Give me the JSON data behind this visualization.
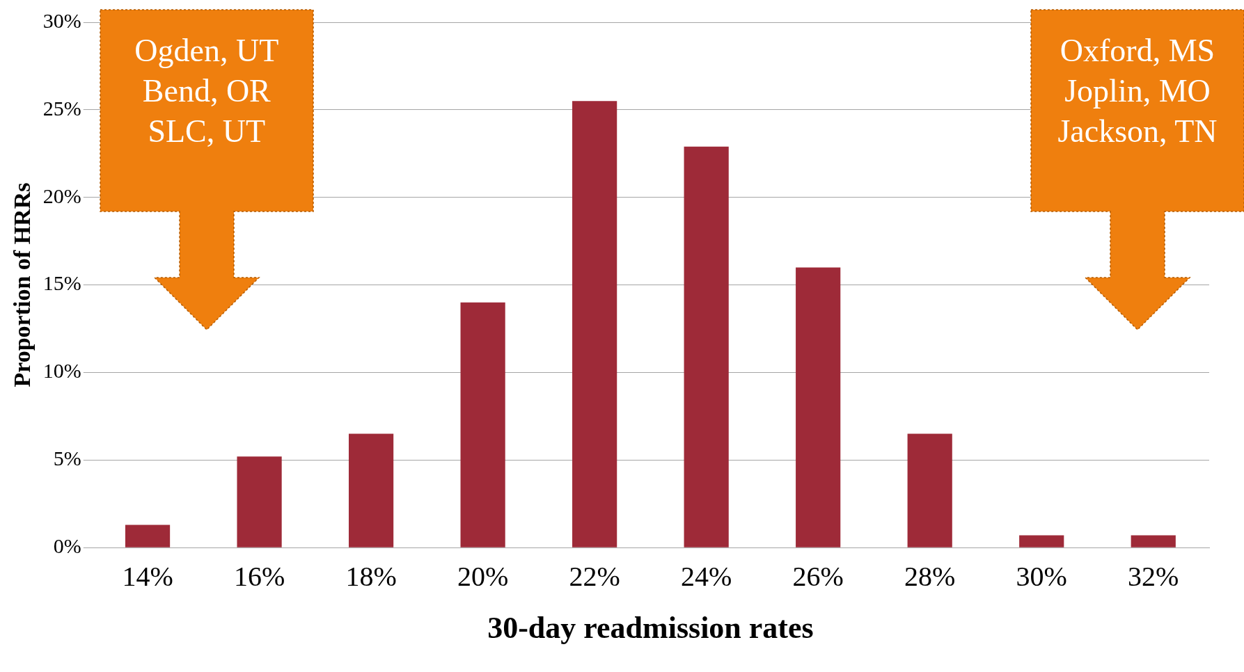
{
  "chart_data": {
    "type": "bar",
    "xlabel": "30-day readmission rates",
    "ylabel": "Proportion of HRRs",
    "categories": [
      "14%",
      "16%",
      "18%",
      "20%",
      "22%",
      "24%",
      "26%",
      "28%",
      "30%",
      "32%"
    ],
    "values": [
      1.3,
      5.2,
      6.5,
      14.0,
      25.5,
      22.9,
      16.0,
      6.5,
      0.7,
      0.7
    ],
    "color": "#9e2a38",
    "ylim": [
      0,
      30
    ],
    "yticks": [
      {
        "value": 0,
        "label": "0%"
      },
      {
        "value": 5,
        "label": "5%"
      },
      {
        "value": 10,
        "label": "10%"
      },
      {
        "value": 15,
        "label": "15%"
      },
      {
        "value": 20,
        "label": "20%"
      },
      {
        "value": 25,
        "label": "25%"
      },
      {
        "value": 30,
        "label": "30%"
      }
    ],
    "grid": "y",
    "legend": false,
    "annotations": [
      "Ogden, UT\nBend, OR\nSLC, UT",
      "Oxford, MS\nJoplin, MO\nJackson, TN"
    ]
  }
}
